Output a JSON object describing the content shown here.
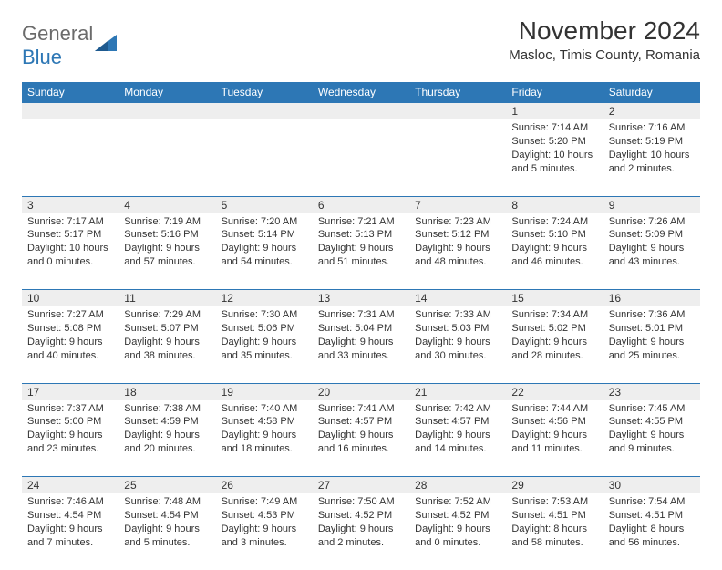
{
  "logo": {
    "text1": "General",
    "text2": "Blue",
    "shape_color": "#2d77b5",
    "text_color_gray": "#6b6b6b"
  },
  "title": "November 2024",
  "location": "Masloc, Timis County, Romania",
  "header_bg": "#2d77b5",
  "header_fg": "#ffffff",
  "daynum_bg": "#eeeeee",
  "border_color": "#2d77b5",
  "text_color": "#333333",
  "day_headers": [
    "Sunday",
    "Monday",
    "Tuesday",
    "Wednesday",
    "Thursday",
    "Friday",
    "Saturday"
  ],
  "weeks": [
    [
      null,
      null,
      null,
      null,
      null,
      {
        "n": "1",
        "sr": "7:14 AM",
        "ss": "5:20 PM",
        "dl": "10 hours and 5 minutes."
      },
      {
        "n": "2",
        "sr": "7:16 AM",
        "ss": "5:19 PM",
        "dl": "10 hours and 2 minutes."
      }
    ],
    [
      {
        "n": "3",
        "sr": "7:17 AM",
        "ss": "5:17 PM",
        "dl": "10 hours and 0 minutes."
      },
      {
        "n": "4",
        "sr": "7:19 AM",
        "ss": "5:16 PM",
        "dl": "9 hours and 57 minutes."
      },
      {
        "n": "5",
        "sr": "7:20 AM",
        "ss": "5:14 PM",
        "dl": "9 hours and 54 minutes."
      },
      {
        "n": "6",
        "sr": "7:21 AM",
        "ss": "5:13 PM",
        "dl": "9 hours and 51 minutes."
      },
      {
        "n": "7",
        "sr": "7:23 AM",
        "ss": "5:12 PM",
        "dl": "9 hours and 48 minutes."
      },
      {
        "n": "8",
        "sr": "7:24 AM",
        "ss": "5:10 PM",
        "dl": "9 hours and 46 minutes."
      },
      {
        "n": "9",
        "sr": "7:26 AM",
        "ss": "5:09 PM",
        "dl": "9 hours and 43 minutes."
      }
    ],
    [
      {
        "n": "10",
        "sr": "7:27 AM",
        "ss": "5:08 PM",
        "dl": "9 hours and 40 minutes."
      },
      {
        "n": "11",
        "sr": "7:29 AM",
        "ss": "5:07 PM",
        "dl": "9 hours and 38 minutes."
      },
      {
        "n": "12",
        "sr": "7:30 AM",
        "ss": "5:06 PM",
        "dl": "9 hours and 35 minutes."
      },
      {
        "n": "13",
        "sr": "7:31 AM",
        "ss": "5:04 PM",
        "dl": "9 hours and 33 minutes."
      },
      {
        "n": "14",
        "sr": "7:33 AM",
        "ss": "5:03 PM",
        "dl": "9 hours and 30 minutes."
      },
      {
        "n": "15",
        "sr": "7:34 AM",
        "ss": "5:02 PM",
        "dl": "9 hours and 28 minutes."
      },
      {
        "n": "16",
        "sr": "7:36 AM",
        "ss": "5:01 PM",
        "dl": "9 hours and 25 minutes."
      }
    ],
    [
      {
        "n": "17",
        "sr": "7:37 AM",
        "ss": "5:00 PM",
        "dl": "9 hours and 23 minutes."
      },
      {
        "n": "18",
        "sr": "7:38 AM",
        "ss": "4:59 PM",
        "dl": "9 hours and 20 minutes."
      },
      {
        "n": "19",
        "sr": "7:40 AM",
        "ss": "4:58 PM",
        "dl": "9 hours and 18 minutes."
      },
      {
        "n": "20",
        "sr": "7:41 AM",
        "ss": "4:57 PM",
        "dl": "9 hours and 16 minutes."
      },
      {
        "n": "21",
        "sr": "7:42 AM",
        "ss": "4:57 PM",
        "dl": "9 hours and 14 minutes."
      },
      {
        "n": "22",
        "sr": "7:44 AM",
        "ss": "4:56 PM",
        "dl": "9 hours and 11 minutes."
      },
      {
        "n": "23",
        "sr": "7:45 AM",
        "ss": "4:55 PM",
        "dl": "9 hours and 9 minutes."
      }
    ],
    [
      {
        "n": "24",
        "sr": "7:46 AM",
        "ss": "4:54 PM",
        "dl": "9 hours and 7 minutes."
      },
      {
        "n": "25",
        "sr": "7:48 AM",
        "ss": "4:54 PM",
        "dl": "9 hours and 5 minutes."
      },
      {
        "n": "26",
        "sr": "7:49 AM",
        "ss": "4:53 PM",
        "dl": "9 hours and 3 minutes."
      },
      {
        "n": "27",
        "sr": "7:50 AM",
        "ss": "4:52 PM",
        "dl": "9 hours and 2 minutes."
      },
      {
        "n": "28",
        "sr": "7:52 AM",
        "ss": "4:52 PM",
        "dl": "9 hours and 0 minutes."
      },
      {
        "n": "29",
        "sr": "7:53 AM",
        "ss": "4:51 PM",
        "dl": "8 hours and 58 minutes."
      },
      {
        "n": "30",
        "sr": "7:54 AM",
        "ss": "4:51 PM",
        "dl": "8 hours and 56 minutes."
      }
    ]
  ],
  "labels": {
    "sunrise": "Sunrise:",
    "sunset": "Sunset:",
    "daylight": "Daylight:"
  }
}
